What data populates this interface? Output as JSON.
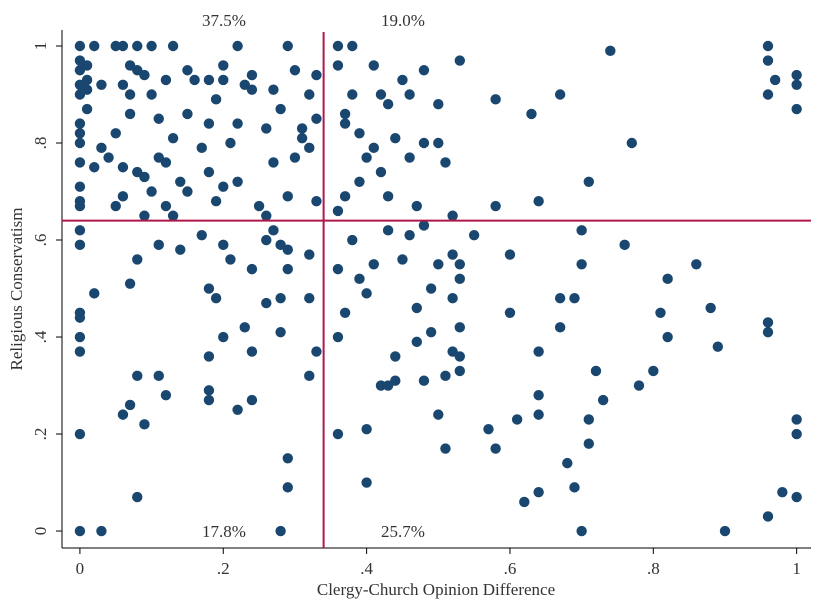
{
  "chart_data": {
    "type": "scatter",
    "xlabel": "Clergy-Church Opinion Difference",
    "ylabel": "Religious Conservatism",
    "annotations": [
      "37.5%",
      "19.0%",
      "17.8%",
      "25.7%"
    ],
    "reference_lines": {
      "x": 0.34,
      "y": 0.64,
      "color": "#b0184c"
    },
    "color": "#1a476f",
    "xlim": [
      -0.025,
      1.02
    ],
    "ylim": [
      -0.035,
      1.033
    ],
    "xticks": [
      0,
      {
        "value": 0.2,
        "label": ".2"
      },
      {
        "value": 0.4,
        "label": ".4"
      },
      {
        "value": 0.6,
        "label": ".6"
      },
      {
        "value": 0.8,
        "label": ".8"
      },
      1
    ],
    "yticks": [
      0,
      {
        "value": 0.2,
        "label": ".2"
      },
      {
        "value": 0.4,
        "label": ".4"
      },
      {
        "value": 0.6,
        "label": ".6"
      },
      {
        "value": 0.8,
        "label": ".8"
      },
      1
    ],
    "x": [
      0,
      0,
      0,
      0,
      0,
      0,
      0,
      0,
      0,
      0,
      0,
      0,
      0.01,
      0.01,
      0.01,
      0.01,
      0.02,
      0.03,
      0.04,
      0.03,
      0.05,
      0.05,
      0.06,
      0.06,
      0.06,
      0.07,
      0.07,
      0.07,
      0.08,
      0.08,
      0.08,
      0.09,
      0.09,
      0.09,
      0.1,
      0.1,
      0.1,
      0.11,
      0.11,
      0.12,
      0.12,
      0.12,
      0.13,
      0.13,
      0.13,
      0.14,
      0.15,
      0.15,
      0.16,
      0.17,
      0.18,
      0.18,
      0.18,
      0.19,
      0.19,
      0.2,
      0.2,
      0.21,
      0.22,
      0.22,
      0.22,
      0.23,
      0.24,
      0.25,
      0.26,
      0.26,
      0.27,
      0.27,
      0.28,
      0.29,
      0.29,
      0.3,
      0.3,
      0.31,
      0.31,
      0.32,
      0.32,
      0.33,
      0.33,
      0.33,
      0.06,
      0.05,
      0.02,
      0.15,
      0.2,
      0.24,
      0.36,
      0.38,
      0.36,
      0.37,
      0.37,
      0.38,
      0.36,
      0.37,
      0.39,
      0.39,
      0.4,
      0.41,
      0.41,
      0.42,
      0.42,
      0.43,
      0.43,
      0.44,
      0.45,
      0.46,
      0.46,
      0.47,
      0.48,
      0.48,
      0.5,
      0.5,
      0.51,
      0.53,
      0.52,
      0.58,
      0.58,
      0.63,
      0.64,
      0.67,
      0.71,
      0.74,
      0.77,
      0.96,
      0.96,
      0.97,
      0.96,
      1,
      1,
      1,
      0,
      0,
      0,
      0,
      0,
      0,
      0,
      0,
      0.03,
      0.02,
      0.07,
      0.08,
      0.08,
      0.07,
      0.06,
      0.09,
      0.08,
      0.11,
      0.11,
      0.12,
      0.14,
      0.17,
      0.18,
      0.18,
      0.18,
      0.18,
      0.19,
      0.2,
      0.2,
      0.21,
      0.22,
      0.23,
      0.24,
      0.24,
      0.24,
      0.26,
      0.26,
      0.27,
      0.28,
      0.28,
      0.28,
      0.29,
      0.29,
      0.29,
      0.29,
      0.28,
      0.32,
      0.32,
      0.32,
      0.33,
      0.36,
      0.36,
      0.36,
      0.37,
      0.38,
      0.39,
      0.4,
      0.4,
      0.4,
      0.41,
      0.42,
      0.43,
      0.43,
      0.44,
      0.44,
      0.45,
      0.46,
      0.47,
      0.47,
      0.48,
      0.48,
      0.49,
      0.49,
      0.5,
      0.5,
      0.51,
      0.51,
      0.52,
      0.52,
      0.52,
      0.53,
      0.53,
      0.53,
      0.53,
      0.53,
      0.55,
      0.57,
      0.58,
      0.6,
      0.6,
      0.61,
      0.62,
      0.64,
      0.64,
      0.64,
      0.64,
      0.67,
      0.67,
      0.68,
      0.69,
      0.69,
      0.7,
      0.7,
      0.7,
      0.71,
      0.71,
      0.72,
      0.73,
      0.76,
      0.78,
      0.8,
      0.81,
      0.82,
      0.82,
      0.86,
      0.88,
      0.89,
      0.9,
      0.96,
      0.96,
      0.96,
      0.98,
      1,
      1,
      1
    ],
    "values": [
      1,
      0.97,
      0.95,
      0.92,
      0.9,
      0.84,
      0.82,
      0.8,
      0.76,
      0.71,
      0.68,
      0.67,
      0.93,
      0.91,
      0.87,
      0.96,
      1,
      0.92,
      0.77,
      0.79,
      1,
      0.82,
      1,
      0.92,
      0.75,
      0.96,
      0.9,
      0.86,
      1,
      0.95,
      0.74,
      0.94,
      0.73,
      0.65,
      1,
      0.9,
      0.7,
      0.85,
      0.77,
      0.93,
      0.76,
      0.67,
      1,
      0.81,
      0.65,
      0.72,
      0.95,
      0.7,
      0.93,
      0.79,
      0.93,
      0.74,
      0.84,
      0.89,
      0.68,
      0.96,
      0.71,
      0.8,
      1,
      0.84,
      0.72,
      0.92,
      0.91,
      0.67,
      0.83,
      0.65,
      0.91,
      0.76,
      0.87,
      1,
      0.69,
      0.77,
      0.95,
      0.83,
      0.81,
      0.9,
      0.79,
      0.94,
      0.85,
      0.68,
      0.69,
      0.67,
      0.75,
      0.86,
      0.93,
      0.94,
      1,
      1,
      0.96,
      0.86,
      0.84,
      0.9,
      0.66,
      0.69,
      0.72,
      0.82,
      0.77,
      0.96,
      0.79,
      0.9,
      0.74,
      0.88,
      0.69,
      0.81,
      0.93,
      0.77,
      0.9,
      0.67,
      0.95,
      0.8,
      0.88,
      0.8,
      0.76,
      0.97,
      0.65,
      0.89,
      0.67,
      0.86,
      0.68,
      0.9,
      0.72,
      0.99,
      0.8,
      1,
      0.97,
      0.93,
      0.9,
      0.94,
      0.92,
      0.87,
      0.62,
      0.59,
      0.45,
      0.44,
      0.4,
      0.37,
      0.2,
      0,
      0,
      0.49,
      0.51,
      0.56,
      0.32,
      0.26,
      0.24,
      0.22,
      0.07,
      0.59,
      0.32,
      0.28,
      0.58,
      0.61,
      0.5,
      0.36,
      0.29,
      0.27,
      0.48,
      0.59,
      0.4,
      0.56,
      0.25,
      0.42,
      0.54,
      0.37,
      0.27,
      0.6,
      0.47,
      0.62,
      0.59,
      0.41,
      0.48,
      0.58,
      0.54,
      0.15,
      0.09,
      0,
      0.57,
      0.48,
      0.32,
      0.37,
      0.54,
      0.4,
      0.2,
      0.45,
      0.6,
      0.52,
      0.49,
      0.21,
      0.1,
      0.55,
      0.3,
      0.62,
      0.3,
      0.36,
      0.31,
      0.56,
      0.61,
      0.46,
      0.39,
      0.63,
      0.31,
      0.5,
      0.41,
      0.24,
      0.55,
      0.17,
      0.32,
      0.48,
      0.57,
      0.37,
      0.55,
      0.52,
      0.42,
      0.36,
      0.33,
      0.61,
      0.21,
      0.17,
      0.45,
      0.57,
      0.23,
      0.06,
      0.28,
      0.24,
      0.37,
      0.08,
      0.48,
      0.42,
      0.14,
      0.48,
      0.09,
      0.62,
      0.55,
      0,
      0.18,
      0.23,
      0.33,
      0.27,
      0.59,
      0.3,
      0.33,
      0.45,
      0.4,
      0.52,
      0.55,
      0.46,
      0.38,
      0,
      0.41,
      0.43,
      0.03,
      0.08,
      0.07,
      0.23,
      0.2
    ]
  }
}
